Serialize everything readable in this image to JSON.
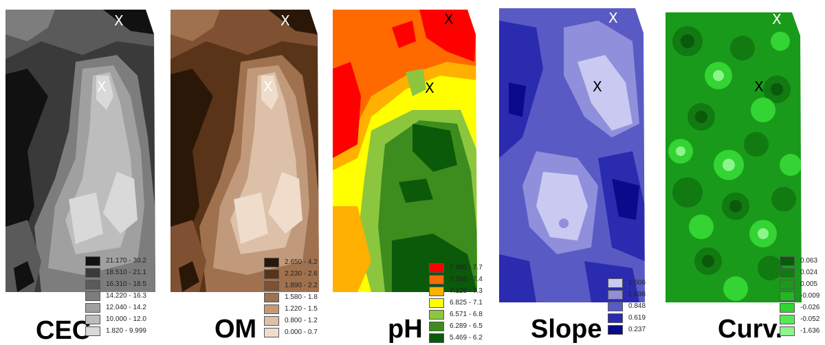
{
  "panels": [
    {
      "id": "cec",
      "title": "CEC",
      "marker_top": "X",
      "marker_mid": "X",
      "marker_colors": [
        "#ffffff",
        "#ffffff"
      ],
      "legend": [
        {
          "label": "21.170 - 30.2",
          "color": "#111111"
        },
        {
          "label": "18.510 - 21.1",
          "color": "#3a3a3a"
        },
        {
          "label": "16.310 - 18.5",
          "color": "#5a5a5a"
        },
        {
          "label": "14.220 - 16.3",
          "color": "#7d7d7d"
        },
        {
          "label": "12.040 - 14.2",
          "color": "#a0a0a0"
        },
        {
          "label": "10.000 - 12.0",
          "color": "#bdbdbd"
        },
        {
          "label": "1.820 - 9.999",
          "color": "#d9d9d9"
        }
      ]
    },
    {
      "id": "om",
      "title": "OM",
      "marker_top": "X",
      "marker_mid": "X",
      "marker_colors": [
        "#ffffff",
        "#ffffff"
      ],
      "legend": [
        {
          "label": "2.650 - 4.2",
          "color": "#2b1708"
        },
        {
          "label": "2.230 - 2.6",
          "color": "#5a3418"
        },
        {
          "label": "1.890 - 2.2",
          "color": "#7f5032"
        },
        {
          "label": "1.580 - 1.8",
          "color": "#a0714f"
        },
        {
          "label": "1.220 - 1.5",
          "color": "#c19a7c"
        },
        {
          "label": "0.800 - 1.2",
          "color": "#dcc0a8"
        },
        {
          "label": "0.000 - 0.7",
          "color": "#efdccb"
        }
      ]
    },
    {
      "id": "ph",
      "title": "pH",
      "marker_top": "X",
      "marker_mid": "X",
      "marker_colors": [
        "#000000",
        "#000000"
      ],
      "legend": [
        {
          "label": "7.480 - 7.7",
          "color": "#ff0000"
        },
        {
          "label": "7.368 - 7.4",
          "color": "#ff6a00"
        },
        {
          "label": "7.128 - 7.3",
          "color": "#ffb000"
        },
        {
          "label": "6.825 - 7.1",
          "color": "#ffff00"
        },
        {
          "label": "6.571 - 6.8",
          "color": "#8cc63f"
        },
        {
          "label": "6.289 - 6.5",
          "color": "#3d8c1e"
        },
        {
          "label": "5.469 - 6.2",
          "color": "#0a5a0a"
        }
      ]
    },
    {
      "id": "slope",
      "title": "Slope",
      "marker_top": "X",
      "marker_mid": "X",
      "marker_colors": [
        "#ffffff",
        "#000000"
      ],
      "legend": [
        {
          "label": "1.506",
          "color": "#c9c9f2"
        },
        {
          "label": "1.098",
          "color": "#8f8fdc"
        },
        {
          "label": "0.848",
          "color": "#5a5ac4"
        },
        {
          "label": "0.619",
          "color": "#2b2bb0"
        },
        {
          "label": "0.237",
          "color": "#0a0a8a"
        }
      ]
    },
    {
      "id": "curv",
      "title": "Curv.",
      "marker_top": "X",
      "marker_mid": "X",
      "marker_colors": [
        "#ffffff",
        "#000000"
      ],
      "legend": [
        {
          "label": "0.063",
          "color": "#0b5a0b"
        },
        {
          "label": "0.024",
          "color": "#117a11"
        },
        {
          "label": "0.005",
          "color": "#1a9a1a"
        },
        {
          "label": "-0.009",
          "color": "#22b822"
        },
        {
          "label": "-0.026",
          "color": "#33d433"
        },
        {
          "label": "-0.052",
          "color": "#55ea55"
        },
        {
          "label": "-1.636",
          "color": "#8cf58c"
        }
      ]
    }
  ]
}
